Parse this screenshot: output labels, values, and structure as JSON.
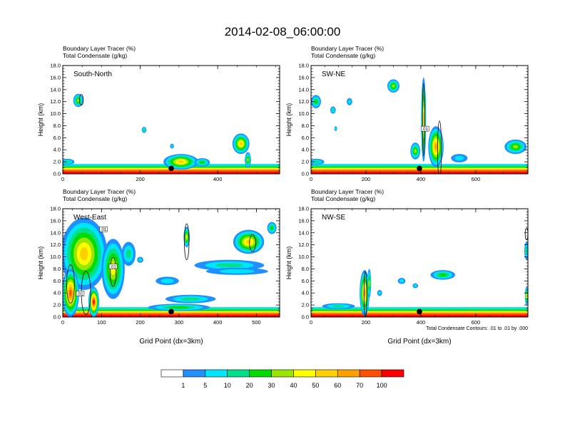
{
  "title": "2014-02-08_06:00:00",
  "panel_label_line1": "Boundary Layer Tracer   (%)",
  "panel_label_line2": "Total Condensate   (g/kg)",
  "contour_note": "Total Condensate Contours: .01 to .01 by .000",
  "colors": {
    "bins": [
      "#ffffff",
      "#1e90ff",
      "#00e5ff",
      "#00e08a",
      "#00dc00",
      "#9be600",
      "#ffff00",
      "#ffd000",
      "#ffa000",
      "#ff5000",
      "#ff0000"
    ],
    "contour": "#000000",
    "marker": "#000000"
  },
  "colorbar": {
    "labels": [
      "1",
      "5",
      "10",
      "20",
      "30",
      "40",
      "50",
      "60",
      "70",
      "100"
    ]
  },
  "chart_data": [
    {
      "type": "heatmap",
      "title": "South-North",
      "ylabel": "Height (km)",
      "xlabel": "",
      "xlim": [
        0,
        560
      ],
      "ylim": [
        0,
        18
      ],
      "xticks": [
        0,
        200,
        400
      ],
      "xtick_labels": [
        "0",
        "200",
        "400"
      ],
      "yticks": [
        0,
        2,
        4,
        6,
        8,
        10,
        12,
        14,
        16,
        18
      ],
      "ytick_labels": [
        "0.0",
        "2.0",
        "4.0",
        "6.0",
        "8.0",
        "10.0",
        "12.0",
        "14.0",
        "16.0",
        "18.0"
      ],
      "marker_x": 280,
      "tracer_blobs": [
        {
          "x": 40,
          "z": 12.2,
          "rx": 13,
          "rz": 1.1,
          "peak": 30
        },
        {
          "x": 210,
          "z": 7.3,
          "rx": 6,
          "rz": 0.5,
          "peak": 10
        },
        {
          "x": 282,
          "z": 4.6,
          "rx": 5,
          "rz": 0.4,
          "peak": 5
        },
        {
          "x": 305,
          "z": 2.0,
          "rx": 45,
          "rz": 1.3,
          "peak": 50
        },
        {
          "x": 360,
          "z": 1.9,
          "rx": 20,
          "rz": 0.7,
          "peak": 20
        },
        {
          "x": 460,
          "z": 5.0,
          "rx": 22,
          "rz": 1.7,
          "peak": 50
        },
        {
          "x": 478,
          "z": 2.3,
          "rx": 8,
          "rz": 1.3,
          "peak": 30
        },
        {
          "x": 12,
          "z": 2.0,
          "rx": 18,
          "rz": 0.5,
          "peak": 10
        }
      ],
      "contours": [
        {
          "x": 48,
          "z": 12.3,
          "rx": 5,
          "rz": 0.9
        }
      ]
    },
    {
      "type": "heatmap",
      "title": "SW-NE",
      "ylabel": "Height (km)",
      "xlabel": "",
      "xlim": [
        0,
        790
      ],
      "ylim": [
        0,
        18
      ],
      "xticks": [
        0,
        200,
        400,
        600
      ],
      "xtick_labels": [
        "0",
        "200",
        "400",
        "600"
      ],
      "yticks": [
        0,
        2,
        4,
        6,
        8,
        10,
        12,
        14,
        16,
        18
      ],
      "ytick_labels": [
        "0.0",
        "2.0",
        "4.0",
        "6.0",
        "8.0",
        "10.0",
        "12.0",
        "14.0",
        "16.0",
        "18.0"
      ],
      "marker_x": 395,
      "tracer_blobs": [
        {
          "x": 18,
          "z": 12.0,
          "rx": 18,
          "rz": 1.1,
          "peak": 20
        },
        {
          "x": 300,
          "z": 14.6,
          "rx": 22,
          "rz": 1.1,
          "peak": 30
        },
        {
          "x": 80,
          "z": 10.6,
          "rx": 10,
          "rz": 0.6,
          "peak": 10
        },
        {
          "x": 140,
          "z": 12.0,
          "rx": 10,
          "rz": 0.6,
          "peak": 5
        },
        {
          "x": 90,
          "z": 7.5,
          "rx": 5,
          "rz": 0.4,
          "peak": 5
        },
        {
          "x": 410,
          "z": 9.0,
          "rx": 9,
          "rz": 7.0,
          "peak": 50
        },
        {
          "x": 455,
          "z": 4.5,
          "rx": 28,
          "rz": 3.4,
          "peak": 60
        },
        {
          "x": 380,
          "z": 3.8,
          "rx": 18,
          "rz": 1.4,
          "peak": 30
        },
        {
          "x": 745,
          "z": 4.5,
          "rx": 40,
          "rz": 1.2,
          "peak": 30
        },
        {
          "x": 540,
          "z": 2.6,
          "rx": 30,
          "rz": 0.7,
          "peak": 5
        },
        {
          "x": 20,
          "z": 2.0,
          "rx": 28,
          "rz": 0.5,
          "peak": 10
        }
      ],
      "contours": [
        {
          "x": 468,
          "z": 4.0,
          "rx": 7,
          "rz": 4.8
        },
        {
          "x": 410,
          "z": 9.0,
          "rx": 4,
          "rz": 6.0
        }
      ],
      "contour_labels": [
        {
          "x": 415,
          "z": 7.5,
          "text": ".01"
        }
      ]
    },
    {
      "type": "heatmap",
      "title": "West-East",
      "ylabel": "Height (km)",
      "xlabel": "Grid Point (dx=3km)",
      "xlim": [
        0,
        560
      ],
      "ylim": [
        0,
        18
      ],
      "xticks": [
        0,
        100,
        200,
        300,
        400,
        500
      ],
      "xtick_labels": [
        "0",
        "100",
        "200",
        "300",
        "400",
        "500"
      ],
      "yticks": [
        0,
        2,
        4,
        6,
        8,
        10,
        12,
        14,
        16,
        18
      ],
      "ytick_labels": [
        "0.0",
        "2.0",
        "4.0",
        "6.0",
        "8.0",
        "10.0",
        "12.0",
        "14.0",
        "16.0",
        "18.0"
      ],
      "marker_x": 280,
      "tracer_blobs": [
        {
          "x": 55,
          "z": 10.5,
          "rx": 60,
          "rz": 6.0,
          "peak": 50
        },
        {
          "x": 20,
          "z": 4.0,
          "rx": 22,
          "rz": 4.0,
          "peak": 70
        },
        {
          "x": 80,
          "z": 2.5,
          "rx": 14,
          "rz": 2.5,
          "peak": 100
        },
        {
          "x": 130,
          "z": 8.0,
          "rx": 30,
          "rz": 5.0,
          "peak": 40
        },
        {
          "x": 170,
          "z": 10.5,
          "rx": 18,
          "rz": 2.0,
          "peak": 10
        },
        {
          "x": 320,
          "z": 13.3,
          "rx": 8,
          "rz": 1.7,
          "peak": 40
        },
        {
          "x": 480,
          "z": 12.5,
          "rx": 40,
          "rz": 2.0,
          "peak": 50
        },
        {
          "x": 540,
          "z": 14.8,
          "rx": 12,
          "rz": 1.0,
          "peak": 20
        },
        {
          "x": 430,
          "z": 8.6,
          "rx": 90,
          "rz": 0.9,
          "peak": 10
        },
        {
          "x": 450,
          "z": 7.6,
          "rx": 80,
          "rz": 0.6,
          "peak": 5
        },
        {
          "x": 270,
          "z": 6.0,
          "rx": 30,
          "rz": 0.7,
          "peak": 5
        },
        {
          "x": 330,
          "z": 3.0,
          "rx": 65,
          "rz": 0.7,
          "peak": 10
        },
        {
          "x": 300,
          "z": 1.6,
          "rx": 80,
          "rz": 0.6,
          "peak": 20
        },
        {
          "x": 200,
          "z": 9.5,
          "rx": 8,
          "rz": 0.5,
          "peak": 5
        }
      ],
      "contours": [
        {
          "x": 320,
          "z": 12.5,
          "rx": 6,
          "rz": 3.0
        },
        {
          "x": 490,
          "z": 12.3,
          "rx": 8,
          "rz": 1.4
        },
        {
          "x": 20,
          "z": 5.5,
          "rx": 10,
          "rz": 3.2
        },
        {
          "x": 60,
          "z": 4.0,
          "rx": 12,
          "rz": 3.6
        },
        {
          "x": 130,
          "z": 7.5,
          "rx": 8,
          "rz": 2.4
        }
      ],
      "contour_labels": [
        {
          "x": 105,
          "z": 14.6,
          "text": ".01"
        },
        {
          "x": 130,
          "z": 8.4,
          "text": ".01"
        },
        {
          "x": 45,
          "z": 3.9,
          "text": ".01"
        }
      ]
    },
    {
      "type": "heatmap",
      "title": "NW-SE",
      "ylabel": "Height (km)",
      "xlabel": "Grid Point (dx=3km)",
      "xlim": [
        0,
        790
      ],
      "ylim": [
        0,
        18
      ],
      "xticks": [
        0,
        200,
        400,
        600
      ],
      "xtick_labels": [
        "0",
        "200",
        "400",
        "600"
      ],
      "yticks": [
        0,
        2,
        4,
        6,
        8,
        10,
        12,
        14,
        16,
        18
      ],
      "ytick_labels": [
        "0.0",
        "2.0",
        "4.0",
        "6.0",
        "8.0",
        "10.0",
        "12.0",
        "14.0",
        "16.0",
        "18.0"
      ],
      "marker_x": 395,
      "tracer_blobs": [
        {
          "x": 195,
          "z": 4.0,
          "rx": 18,
          "rz": 3.8,
          "peak": 60
        },
        {
          "x": 212,
          "z": 5.6,
          "rx": 7,
          "rz": 2.4,
          "peak": 30
        },
        {
          "x": 250,
          "z": 4.0,
          "rx": 9,
          "rz": 0.5,
          "peak": 5
        },
        {
          "x": 330,
          "z": 6.0,
          "rx": 14,
          "rz": 0.5,
          "peak": 5
        },
        {
          "x": 480,
          "z": 7.0,
          "rx": 45,
          "rz": 0.8,
          "peak": 20
        },
        {
          "x": 380,
          "z": 5.2,
          "rx": 10,
          "rz": 0.4,
          "peak": 5
        },
        {
          "x": 785,
          "z": 11.0,
          "rx": 8,
          "rz": 1.5,
          "peak": 10
        },
        {
          "x": 785,
          "z": 3.5,
          "rx": 6,
          "rz": 1.5,
          "peak": 40
        },
        {
          "x": 100,
          "z": 1.8,
          "rx": 60,
          "rz": 0.5,
          "peak": 10
        }
      ],
      "contours": [
        {
          "x": 198,
          "z": 3.8,
          "rx": 5,
          "rz": 3.8
        },
        {
          "x": 785,
          "z": 13.8,
          "rx": 5,
          "rz": 1.0
        }
      ]
    }
  ]
}
